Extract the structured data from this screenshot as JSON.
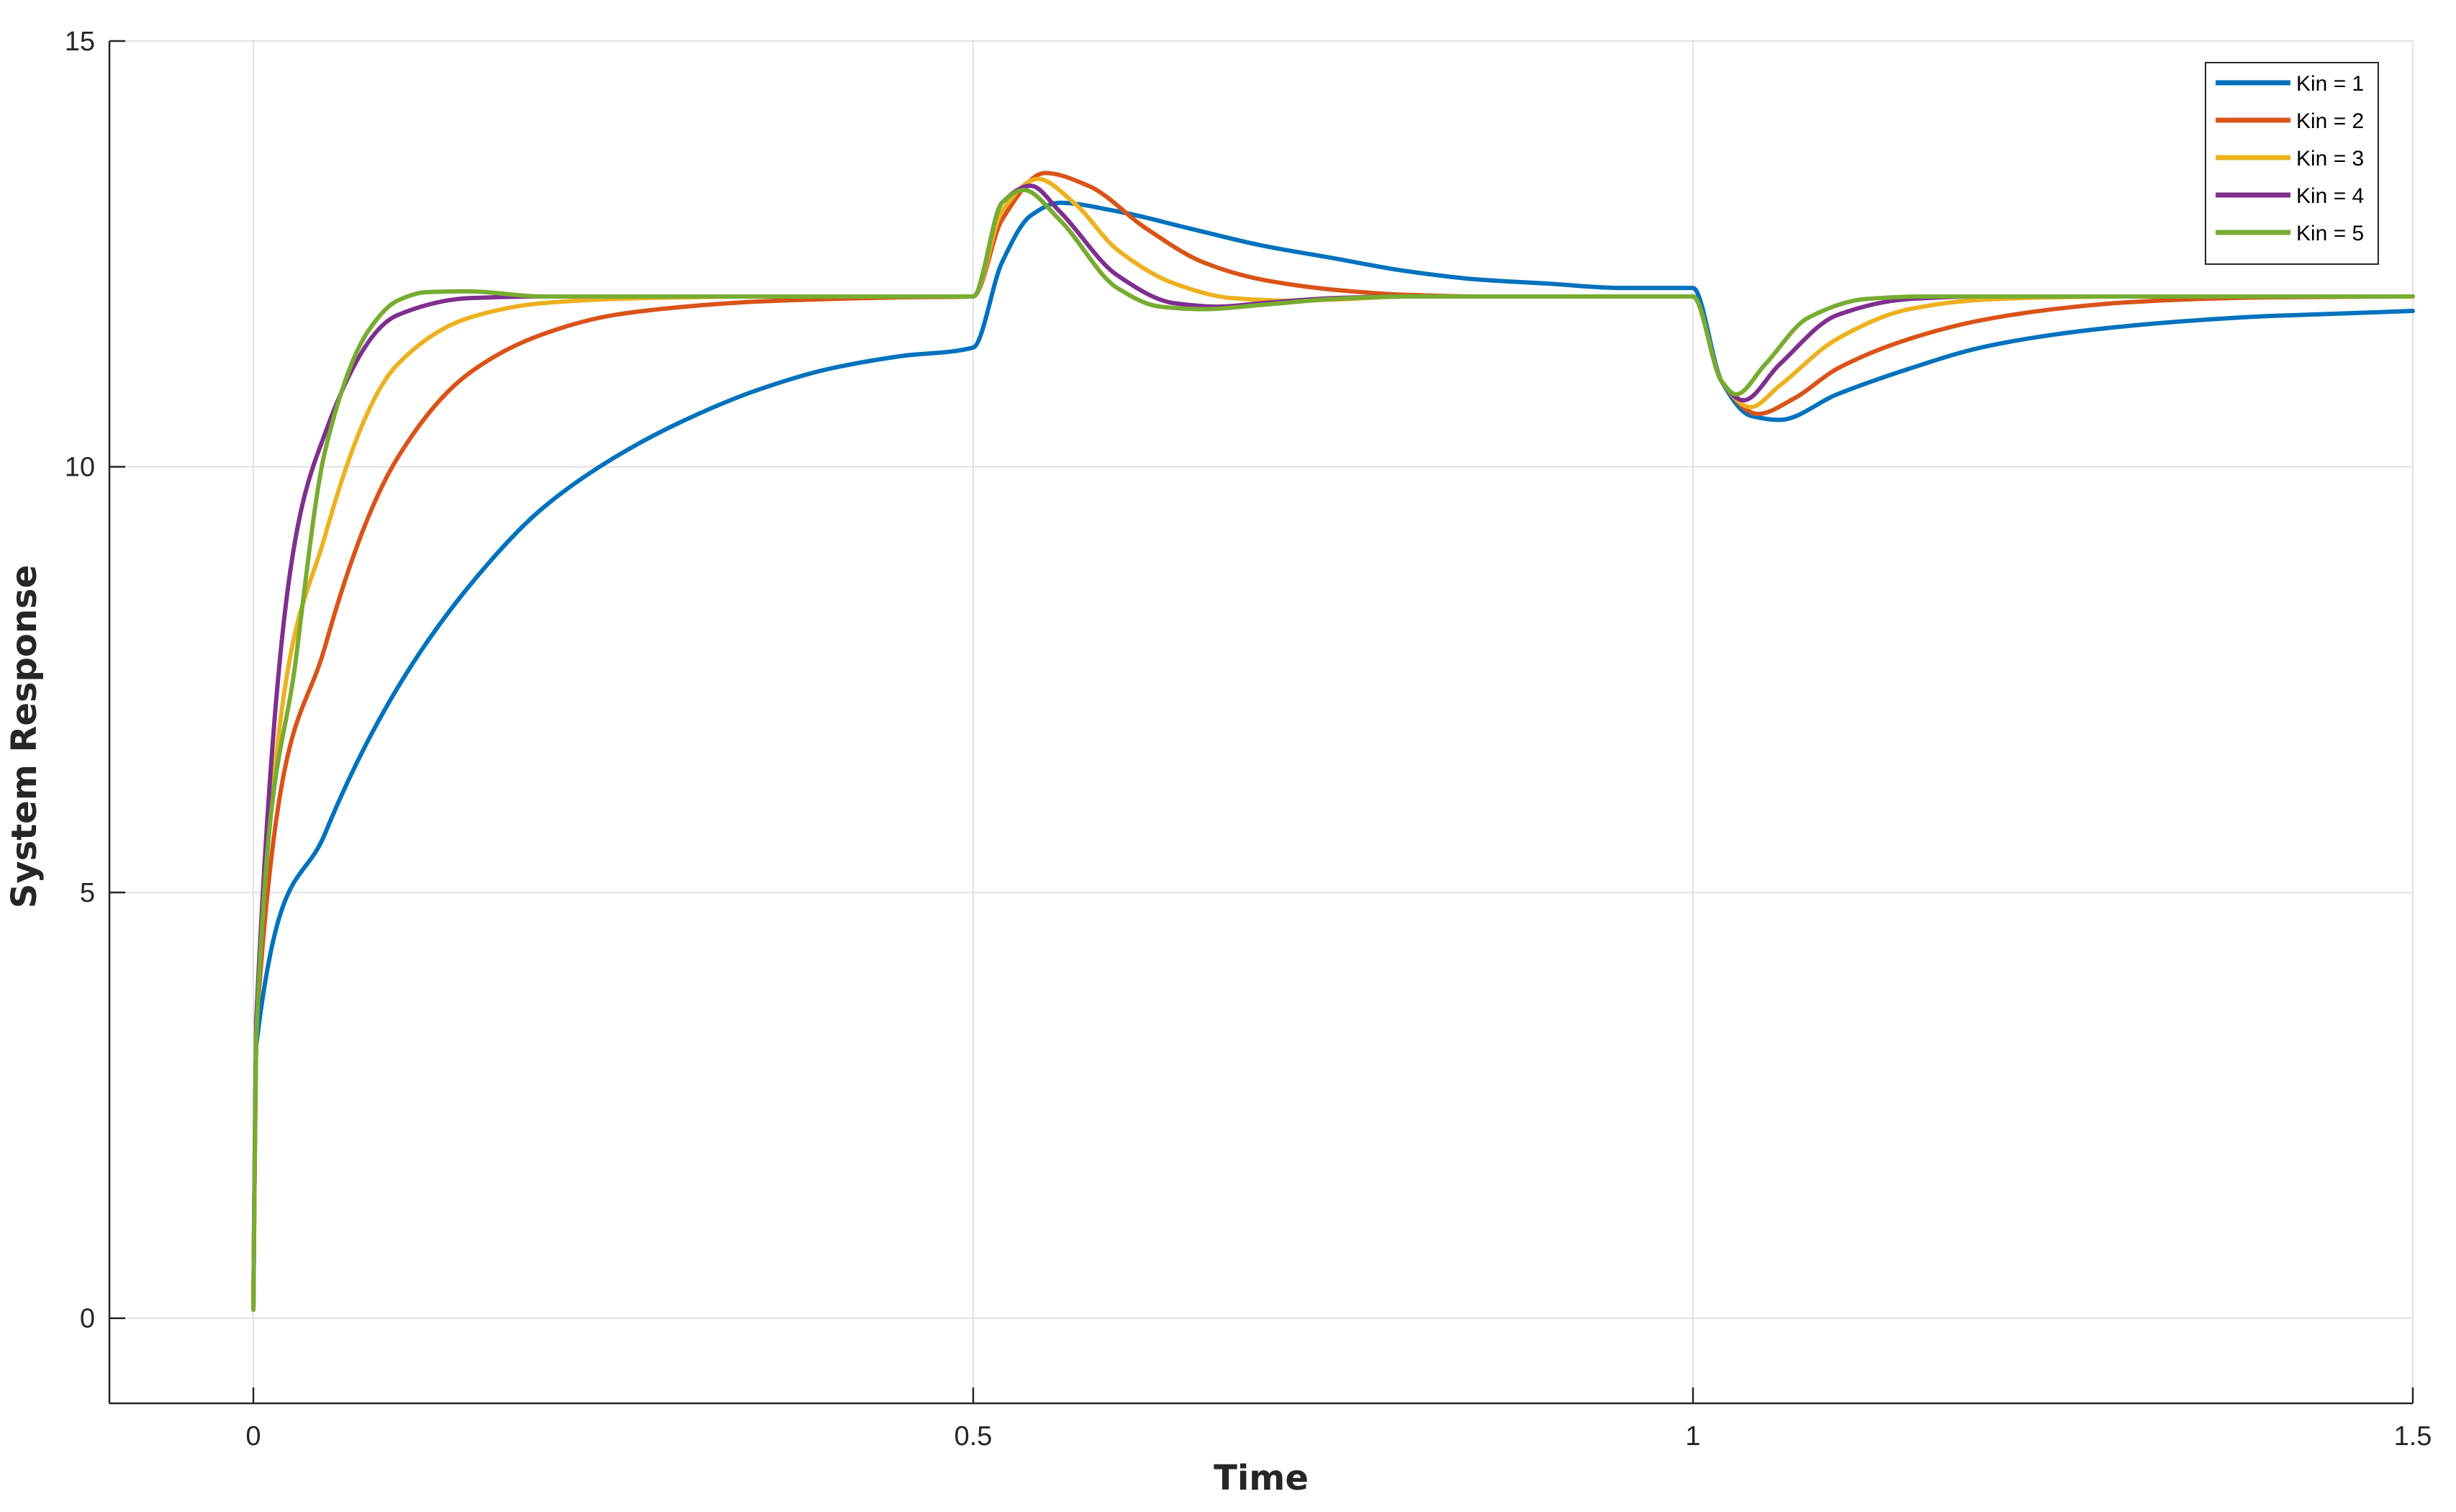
{
  "chart_data": {
    "type": "line",
    "xlabel": "Time",
    "ylabel": "System Response",
    "xlim": [
      -0.1,
      1.5
    ],
    "ylim": [
      -1,
      15
    ],
    "xticks": [
      0,
      0.5,
      1,
      1.5
    ],
    "xtick_labels": [
      "0",
      "0.5",
      "1",
      "1.5"
    ],
    "yticks": [
      0,
      5,
      10,
      15
    ],
    "ytick_labels": [
      "0",
      "5",
      "10",
      "15"
    ],
    "grid": true,
    "legend_position": "top-right",
    "series": [
      {
        "name": "Kin = 1",
        "color": "#0072BD",
        "x": [
          0,
          0.002,
          0.05,
          0.1,
          0.15,
          0.2,
          0.25,
          0.3,
          0.35,
          0.4,
          0.45,
          0.5,
          0.52,
          0.54,
          0.56,
          0.6,
          0.65,
          0.7,
          0.75,
          0.8,
          0.85,
          0.9,
          0.95,
          1.0,
          1.02,
          1.04,
          1.06,
          1.1,
          1.15,
          1.2,
          1.25,
          1.3,
          1.35,
          1.4,
          1.45,
          1.5
        ],
        "y": [
          0.1,
          3.2,
          5.7,
          7.4,
          8.6,
          9.5,
          10.1,
          10.55,
          10.9,
          11.15,
          11.3,
          11.4,
          12.4,
          12.95,
          13.1,
          13.0,
          12.8,
          12.6,
          12.45,
          12.3,
          12.2,
          12.15,
          12.1,
          12.1,
          11.0,
          10.6,
          10.55,
          10.85,
          11.15,
          11.4,
          11.55,
          11.65,
          11.72,
          11.77,
          11.8,
          11.83
        ]
      },
      {
        "name": "Kin = 2",
        "color": "#D95319",
        "x": [
          0,
          0.002,
          0.05,
          0.1,
          0.15,
          0.2,
          0.25,
          0.3,
          0.35,
          0.4,
          0.45,
          0.5,
          0.52,
          0.55,
          0.58,
          0.62,
          0.66,
          0.7,
          0.75,
          0.8,
          0.85,
          0.9,
          0.95,
          1.0,
          1.02,
          1.045,
          1.07,
          1.1,
          1.15,
          1.2,
          1.25,
          1.3,
          1.35,
          1.4,
          1.5
        ],
        "y": [
          0.1,
          3.4,
          7.9,
          10.1,
          11.1,
          11.55,
          11.78,
          11.88,
          11.94,
          11.97,
          11.99,
          12.0,
          12.9,
          13.45,
          13.3,
          12.8,
          12.4,
          12.2,
          12.08,
          12.02,
          12.0,
          12.0,
          12.0,
          12.0,
          11.0,
          10.62,
          10.8,
          11.15,
          11.5,
          11.72,
          11.85,
          11.93,
          11.97,
          11.99,
          12.0
        ]
      },
      {
        "name": "Kin = 3",
        "color": "#EDB120",
        "x": [
          0,
          0.002,
          0.05,
          0.1,
          0.15,
          0.2,
          0.25,
          0.3,
          0.35,
          0.4,
          0.5,
          0.52,
          0.545,
          0.57,
          0.6,
          0.64,
          0.68,
          0.72,
          0.76,
          0.8,
          0.9,
          1.0,
          1.02,
          1.04,
          1.06,
          1.1,
          1.15,
          1.2,
          1.25,
          1.3,
          1.5
        ],
        "y": [
          0.1,
          3.5,
          9.2,
          11.2,
          11.75,
          11.92,
          11.97,
          11.99,
          12.0,
          12.0,
          12.0,
          13.0,
          13.38,
          13.1,
          12.55,
          12.15,
          11.98,
          11.95,
          11.97,
          12.0,
          12.0,
          12.0,
          11.0,
          10.7,
          10.95,
          11.5,
          11.85,
          11.96,
          11.99,
          12.0,
          12.0
        ]
      },
      {
        "name": "Kin = 4",
        "color": "#7E2F8E",
        "x": [
          0,
          0.002,
          0.05,
          0.1,
          0.15,
          0.2,
          0.3,
          0.5,
          0.52,
          0.54,
          0.56,
          0.6,
          0.64,
          0.67,
          0.7,
          0.75,
          0.8,
          1.0,
          1.02,
          1.035,
          1.06,
          1.1,
          1.15,
          1.2,
          1.5
        ],
        "y": [
          0.1,
          3.5,
          10.4,
          11.78,
          11.98,
          12.0,
          12.0,
          12.0,
          13.1,
          13.3,
          13.0,
          12.25,
          11.92,
          11.88,
          11.92,
          11.98,
          12.0,
          12.0,
          11.0,
          10.78,
          11.2,
          11.78,
          11.97,
          12.0,
          12.0
        ]
      },
      {
        "name": "Kin = 5",
        "color": "#77AC30",
        "x": [
          0,
          0.002,
          0.03,
          0.05,
          0.08,
          0.1,
          0.12,
          0.15,
          0.2,
          0.5,
          0.52,
          0.535,
          0.56,
          0.6,
          0.63,
          0.66,
          0.7,
          0.75,
          0.8,
          1.0,
          1.02,
          1.03,
          1.05,
          1.08,
          1.12,
          1.16,
          1.5
        ],
        "y": [
          0.1,
          3.3,
          7.8,
          10.2,
          11.6,
          11.95,
          12.05,
          12.06,
          12.0,
          12.0,
          13.1,
          13.25,
          12.9,
          12.1,
          11.88,
          11.85,
          11.9,
          11.97,
          12.0,
          12.0,
          11.0,
          10.85,
          11.2,
          11.75,
          11.97,
          12.0,
          12.0
        ]
      }
    ]
  }
}
